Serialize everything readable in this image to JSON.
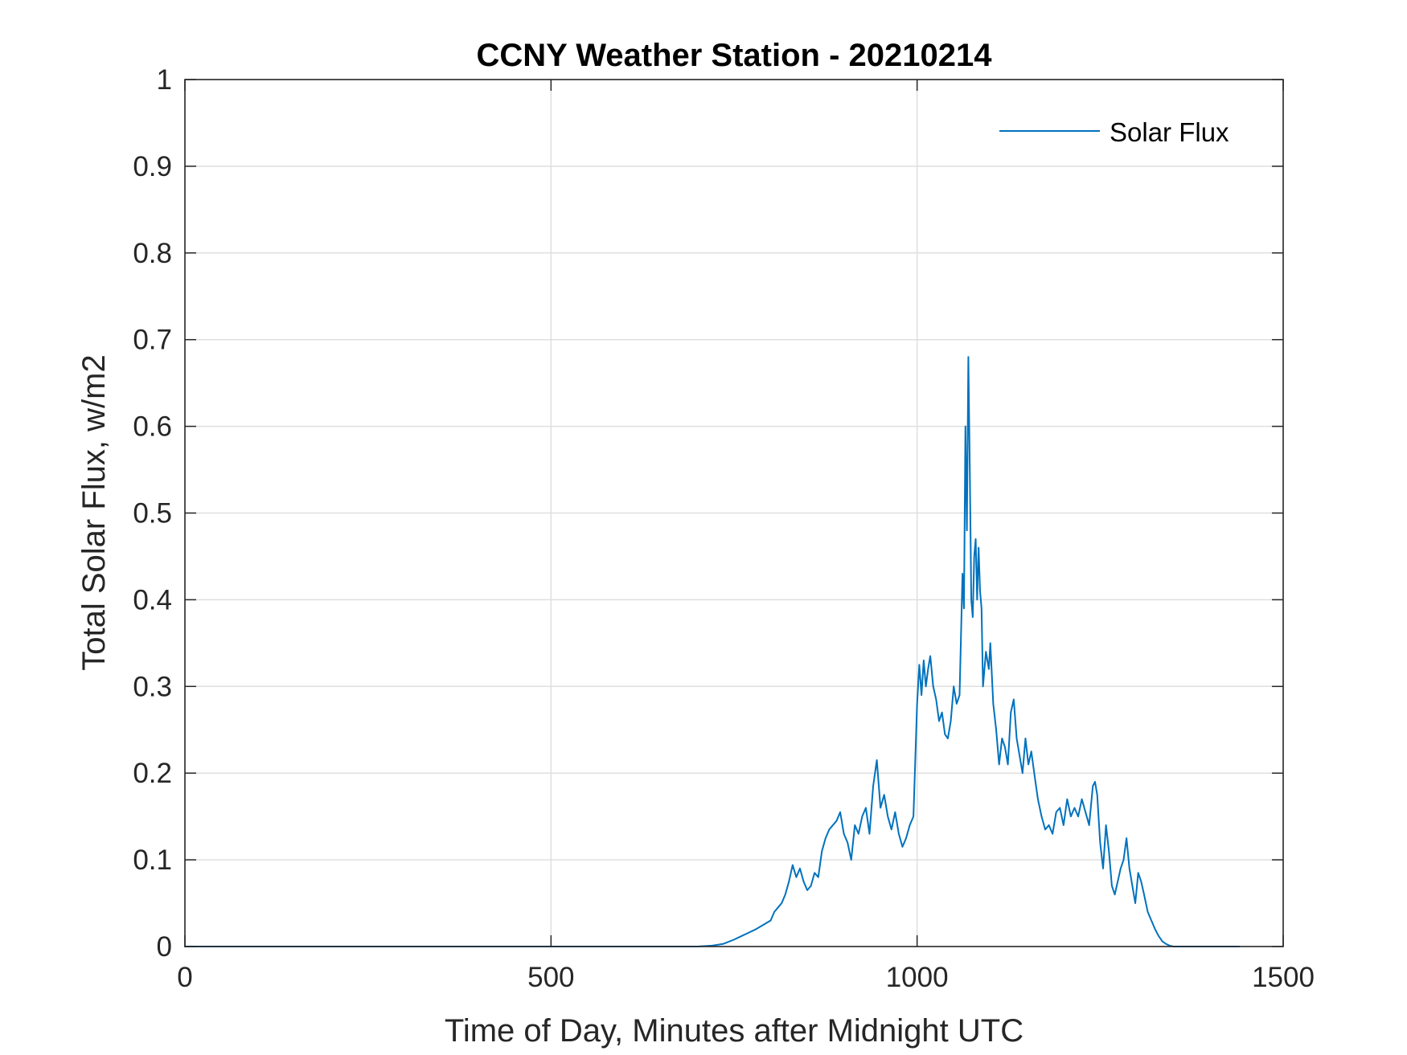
{
  "chart_data": {
    "type": "line",
    "title": "CCNY Weather Station - 20210214",
    "xlabel": "Time of Day, Minutes after Midnight UTC",
    "ylabel": "Total Solar Flux, w/m2",
    "xlim": [
      0,
      1500
    ],
    "ylim": [
      0,
      1
    ],
    "xticks": [
      0,
      500,
      1000,
      1500
    ],
    "xtick_labels": [
      "0",
      "500",
      "1000",
      "1500"
    ],
    "yticks": [
      0,
      0.1,
      0.2,
      0.3,
      0.4,
      0.5,
      0.6,
      0.7,
      0.8,
      0.9,
      1
    ],
    "ytick_labels": [
      "0",
      "0.1",
      "0.2",
      "0.3",
      "0.4",
      "0.5",
      "0.6",
      "0.7",
      "0.8",
      "0.9",
      "1"
    ],
    "grid": true,
    "legend": {
      "position": "top-right",
      "entries": [
        "Solar Flux"
      ]
    },
    "series": [
      {
        "name": "Solar Flux",
        "color": "#0072BD",
        "x": [
          0,
          500,
          700,
          720,
          735,
          750,
          760,
          770,
          780,
          790,
          800,
          805,
          810,
          815,
          820,
          825,
          830,
          835,
          840,
          845,
          850,
          855,
          860,
          865,
          870,
          875,
          880,
          885,
          890,
          895,
          900,
          905,
          910,
          915,
          920,
          925,
          930,
          935,
          940,
          945,
          950,
          955,
          960,
          965,
          970,
          975,
          980,
          985,
          990,
          995,
          1000,
          1003,
          1006,
          1009,
          1012,
          1015,
          1018,
          1022,
          1026,
          1030,
          1034,
          1038,
          1042,
          1046,
          1050,
          1054,
          1058,
          1062,
          1064,
          1066,
          1068,
          1070,
          1072,
          1074,
          1076,
          1078,
          1080,
          1082,
          1084,
          1086,
          1088,
          1090,
          1094,
          1098,
          1100,
          1104,
          1108,
          1112,
          1116,
          1120,
          1124,
          1128,
          1132,
          1136,
          1140,
          1144,
          1148,
          1152,
          1156,
          1160,
          1165,
          1170,
          1175,
          1180,
          1185,
          1190,
          1195,
          1200,
          1205,
          1210,
          1215,
          1220,
          1225,
          1230,
          1235,
          1240,
          1243,
          1246,
          1250,
          1254,
          1258,
          1262,
          1266,
          1270,
          1274,
          1278,
          1282,
          1286,
          1290,
          1294,
          1298,
          1302,
          1306,
          1310,
          1315,
          1320,
          1325,
          1330,
          1335,
          1340,
          1345,
          1350,
          1360,
          1370,
          1400,
          1440
        ],
        "y": [
          0,
          0,
          0,
          0.001,
          0.003,
          0.008,
          0.012,
          0.016,
          0.02,
          0.025,
          0.03,
          0.04,
          0.045,
          0.05,
          0.06,
          0.075,
          0.094,
          0.08,
          0.09,
          0.075,
          0.065,
          0.07,
          0.085,
          0.08,
          0.11,
          0.125,
          0.135,
          0.14,
          0.145,
          0.155,
          0.13,
          0.12,
          0.1,
          0.14,
          0.13,
          0.15,
          0.16,
          0.13,
          0.185,
          0.215,
          0.16,
          0.175,
          0.15,
          0.135,
          0.155,
          0.13,
          0.115,
          0.125,
          0.14,
          0.15,
          0.28,
          0.325,
          0.29,
          0.33,
          0.3,
          0.32,
          0.335,
          0.3,
          0.285,
          0.26,
          0.27,
          0.245,
          0.24,
          0.26,
          0.3,
          0.28,
          0.29,
          0.43,
          0.39,
          0.6,
          0.48,
          0.68,
          0.55,
          0.4,
          0.38,
          0.45,
          0.47,
          0.4,
          0.46,
          0.41,
          0.39,
          0.3,
          0.34,
          0.32,
          0.35,
          0.28,
          0.25,
          0.21,
          0.24,
          0.23,
          0.21,
          0.27,
          0.285,
          0.24,
          0.22,
          0.2,
          0.24,
          0.21,
          0.225,
          0.2,
          0.17,
          0.15,
          0.135,
          0.14,
          0.13,
          0.155,
          0.16,
          0.14,
          0.17,
          0.15,
          0.16,
          0.15,
          0.17,
          0.155,
          0.14,
          0.185,
          0.19,
          0.175,
          0.12,
          0.09,
          0.14,
          0.11,
          0.07,
          0.06,
          0.075,
          0.09,
          0.1,
          0.125,
          0.09,
          0.07,
          0.05,
          0.085,
          0.075,
          0.06,
          0.04,
          0.03,
          0.02,
          0.012,
          0.006,
          0.003,
          0.001,
          0,
          0,
          0,
          0,
          0
        ]
      }
    ]
  }
}
